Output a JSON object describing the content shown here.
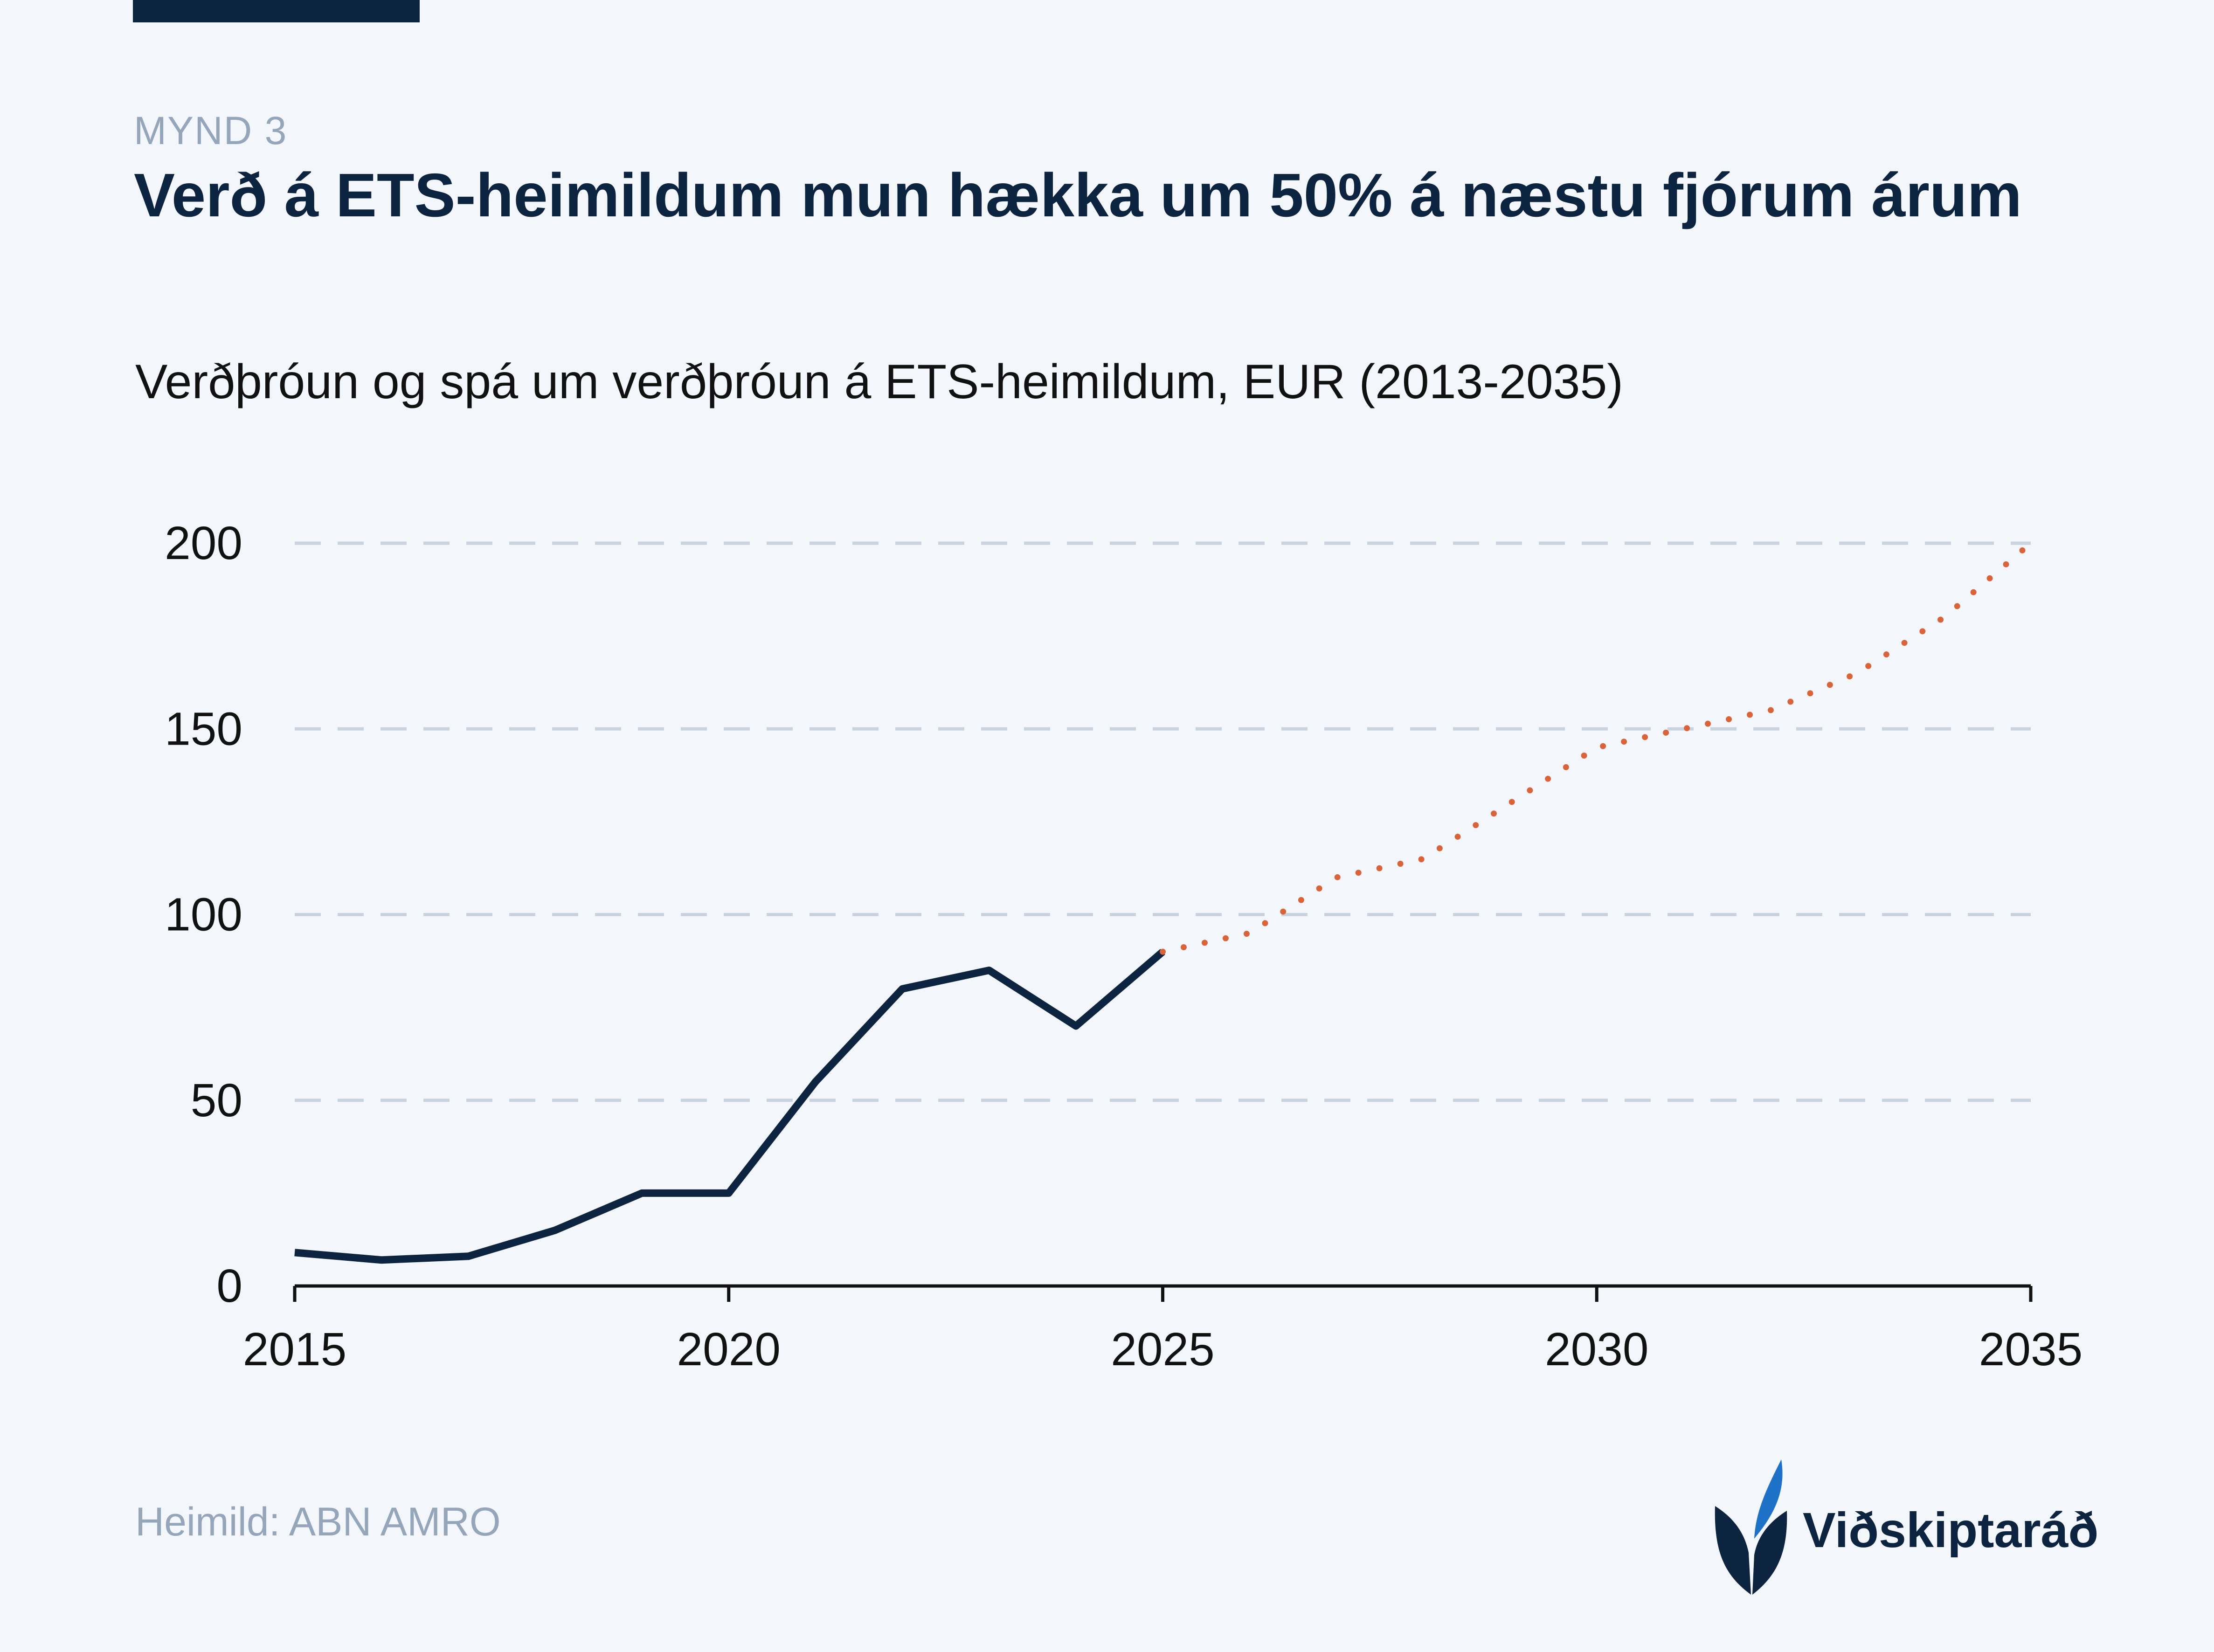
{
  "figure_label": "MYND 3",
  "title": "Verð á ETS-heimildum mun hækka um 50% á næstu fjórum árum",
  "subtitle": "Verðþróun og spá um verðþróun á ETS-heimildum, EUR (2013-2035)",
  "source": "Heimild: ABN AMRO",
  "logo": {
    "text": "Viðskiptaráð",
    "icon": "leaf-logo-icon"
  },
  "colors": {
    "background": "#f3f6fa",
    "historical": "#0c2440",
    "forecast": "#d9643a",
    "grid": "#c9d3df",
    "logo_accent": "#1d71c6"
  },
  "chart_data": {
    "type": "line",
    "title": "Verð á ETS-heimildum mun hækka um 50% á næstu fjórum árum",
    "xlabel": "",
    "ylabel": "",
    "xlim": [
      2015,
      2035
    ],
    "ylim": [
      0,
      200
    ],
    "x_ticks": [
      "2015",
      "2020",
      "2025",
      "2030",
      "2035"
    ],
    "y_ticks": [
      "0",
      "50",
      "100",
      "150",
      "200"
    ],
    "grid": "horizontal-dashed",
    "legend": "none",
    "series": [
      {
        "style": "solid",
        "color": "#0c2440",
        "x": [
          2015,
          2016,
          2017,
          2018,
          2019,
          2020,
          2021,
          2022,
          2023,
          2024,
          2025
        ],
        "y": [
          9,
          7,
          8,
          15,
          25,
          25,
          55,
          80,
          85,
          70,
          90
        ]
      },
      {
        "style": "dotted",
        "color": "#d9643a",
        "x": [
          2025,
          2026,
          2027,
          2028,
          2029,
          2030,
          2031,
          2032,
          2033,
          2034,
          2035
        ],
        "y": [
          90,
          95,
          110,
          115,
          130,
          145,
          150,
          155,
          165,
          180,
          200
        ]
      }
    ]
  }
}
